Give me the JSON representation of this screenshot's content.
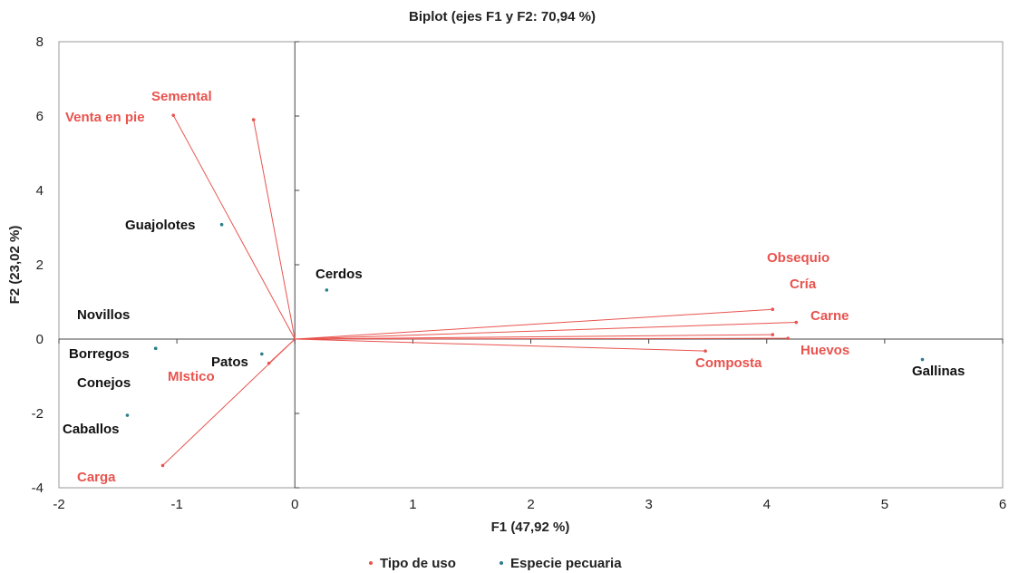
{
  "chart_data": {
    "type": "scatter",
    "title": "Biplot (ejes F1 y F2: 70,94 %)",
    "xlabel": "F1 (47,92 %)",
    "ylabel": "F2 (23,02 %)",
    "xlim": [
      -2,
      6
    ],
    "ylim": [
      -4,
      8
    ],
    "xticks": [
      -2,
      -1,
      0,
      1,
      2,
      3,
      4,
      5,
      6
    ],
    "yticks": [
      -4,
      -2,
      0,
      2,
      4,
      6,
      8
    ],
    "x_tick_labels": [
      "-2",
      "-1",
      "0",
      "1",
      "2",
      "3",
      "4",
      "5",
      "6"
    ],
    "y_tick_labels": [
      "-4",
      "-2",
      "0",
      "2",
      "4",
      "6",
      "8"
    ],
    "grid": false,
    "legend_position": "bottom",
    "series": [
      {
        "name": "Tipo de uso",
        "color": "#E8534E",
        "vectors_from_origin": true,
        "points": [
          {
            "label": "Venta en pie",
            "x": -1.03,
            "y": 6.02
          },
          {
            "label": "Semental",
            "x": -0.35,
            "y": 5.9
          },
          {
            "label": "Obsequio",
            "x": 4.05,
            "y": 0.8
          },
          {
            "label": "Cría",
            "x": 4.25,
            "y": 0.45
          },
          {
            "label": "Carne",
            "x": 4.05,
            "y": 0.12
          },
          {
            "label": "Huevos",
            "x": 4.18,
            "y": 0.02
          },
          {
            "label": "Composta",
            "x": 3.48,
            "y": -0.32
          },
          {
            "label": "MIstico",
            "x": -0.22,
            "y": -0.65
          },
          {
            "label": "Carga",
            "x": -1.12,
            "y": -3.4
          }
        ]
      },
      {
        "name": "Especie pecuaria",
        "color": "#2E7D8C",
        "vectors_from_origin": false,
        "points": [
          {
            "label": "Guajolotes",
            "x": -0.62,
            "y": 3.08
          },
          {
            "label": "Cerdos",
            "x": 0.27,
            "y": 1.32
          },
          {
            "label": "Novillos",
            "x": -1.18,
            "y": -0.25
          },
          {
            "label": "Borregos",
            "x": -1.18,
            "y": -0.25
          },
          {
            "label": "Patos",
            "x": -0.28,
            "y": -0.4
          },
          {
            "label": "Conejos",
            "x": -1.18,
            "y": -0.25
          },
          {
            "label": "Caballos",
            "x": -1.42,
            "y": -2.05
          },
          {
            "label": "Gallinas",
            "x": 5.32,
            "y": -0.55
          }
        ]
      }
    ]
  }
}
